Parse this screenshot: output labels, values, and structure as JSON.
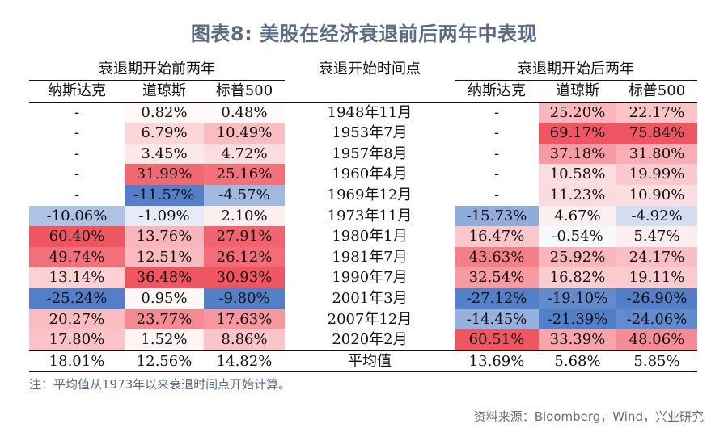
{
  "title": "图表8: 美股在经济衰退前后两年中表现",
  "headers": {
    "before_group": "衰退期开始前两年",
    "middle": "衰退开始时间点",
    "after_group": "衰退期开始后两年",
    "before_cols": [
      "纳斯达克",
      "道琼斯",
      "标普500"
    ],
    "after_cols": [
      "纳斯达克",
      "道琼斯",
      "标普500"
    ]
  },
  "rows": [
    {
      "before": [
        "-",
        "0.82%",
        "0.48%"
      ],
      "date": "1948年11月",
      "after": [
        "-",
        "25.20%",
        "22.17%"
      ]
    },
    {
      "before": [
        "-",
        "6.79%",
        "10.49%"
      ],
      "date": "1953年7月",
      "after": [
        "-",
        "69.17%",
        "75.84%"
      ]
    },
    {
      "before": [
        "-",
        "3.45%",
        "4.72%"
      ],
      "date": "1957年8月",
      "after": [
        "-",
        "37.18%",
        "31.80%"
      ]
    },
    {
      "before": [
        "-",
        "31.99%",
        "25.16%"
      ],
      "date": "1960年4月",
      "after": [
        "-",
        "10.58%",
        "19.99%"
      ]
    },
    {
      "before": [
        "-",
        "-11.57%",
        "-4.57%"
      ],
      "date": "1969年12月",
      "after": [
        "-",
        "11.23%",
        "10.90%"
      ]
    },
    {
      "before": [
        "-10.06%",
        "-1.09%",
        "2.10%"
      ],
      "date": "1973年11月",
      "after": [
        "-15.73%",
        "4.67%",
        "-4.92%"
      ]
    },
    {
      "before": [
        "60.40%",
        "13.76%",
        "27.91%"
      ],
      "date": "1980年1月",
      "after": [
        "16.47%",
        "-0.54%",
        "5.47%"
      ]
    },
    {
      "before": [
        "49.74%",
        "12.51%",
        "26.12%"
      ],
      "date": "1981年7月",
      "after": [
        "43.63%",
        "25.92%",
        "24.17%"
      ]
    },
    {
      "before": [
        "13.14%",
        "36.48%",
        "30.93%"
      ],
      "date": "1990年7月",
      "after": [
        "32.54%",
        "16.82%",
        "19.11%"
      ]
    },
    {
      "before": [
        "-25.24%",
        "0.95%",
        "-9.80%"
      ],
      "date": "2001年3月",
      "after": [
        "-27.12%",
        "-19.10%",
        "-26.90%"
      ]
    },
    {
      "before": [
        "20.27%",
        "23.77%",
        "17.63%"
      ],
      "date": "2007年12月",
      "after": [
        "-14.45%",
        "-21.39%",
        "-24.06%"
      ]
    },
    {
      "before": [
        "17.80%",
        "1.52%",
        "8.86%"
      ],
      "date": "2020年2月",
      "after": [
        "60.51%",
        "33.39%",
        "48.06%"
      ]
    }
  ],
  "average_row": {
    "before": [
      "18.01%",
      "12.56%",
      "14.82%"
    ],
    "label": "平均值",
    "after": [
      "13.69%",
      "5.68%",
      "5.85%"
    ]
  },
  "note": "注：平均值从1973年以来衰退时间点开始计算。",
  "source": "资料来源：Bloomberg，Wind，兴业研究",
  "colors": {
    "title": "#5b6b86",
    "neg_strong": "#4a78c5",
    "pos_strong": "#ef4d5a",
    "neutral": "#ffffff"
  }
}
